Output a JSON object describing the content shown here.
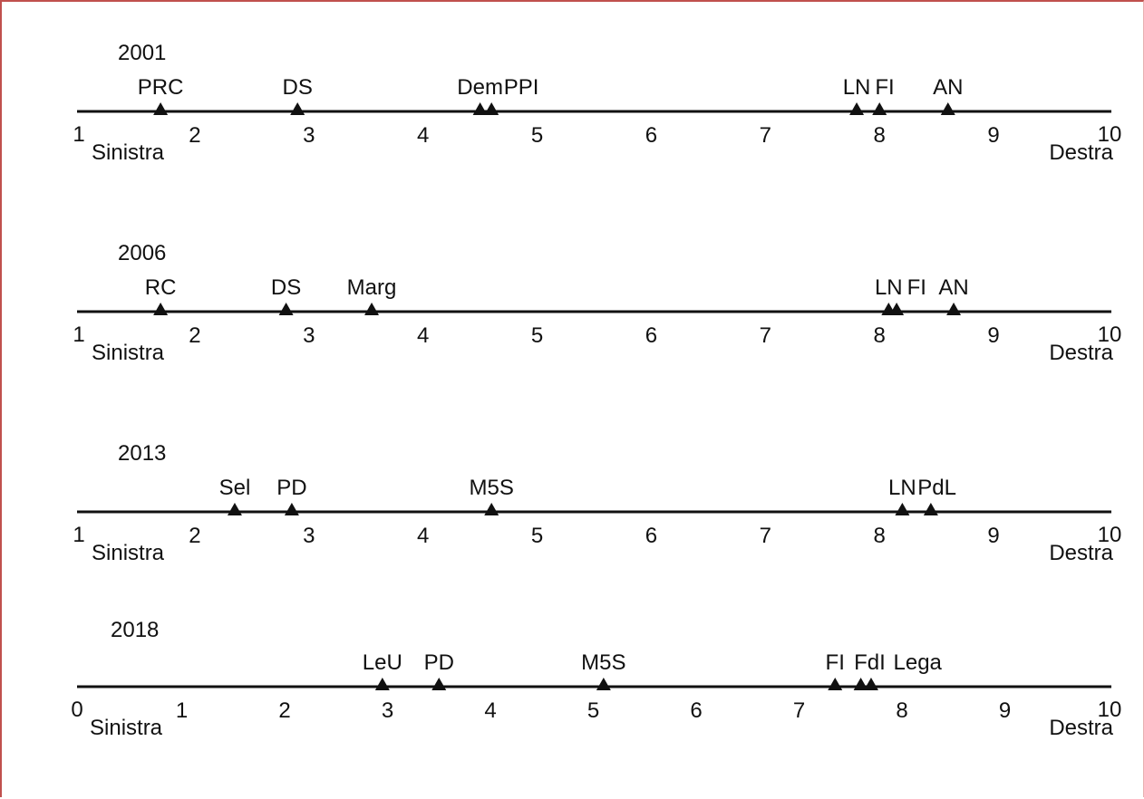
{
  "chart_data": [
    {
      "type": "scatter",
      "title": "2001",
      "xlim": [
        1,
        10
      ],
      "ticks": [
        "1",
        "2",
        "3",
        "4",
        "5",
        "6",
        "7",
        "8",
        "9",
        "10"
      ],
      "left_label": "Sinistra",
      "right_label": "Destra",
      "parties": [
        {
          "name": "PRC",
          "value": 1.7
        },
        {
          "name": "DS",
          "value": 2.9
        },
        {
          "name": "Dem",
          "value": 4.5
        },
        {
          "name": "PPI",
          "value": 4.6
        },
        {
          "name": "LN",
          "value": 7.8
        },
        {
          "name": "FI",
          "value": 8.0
        },
        {
          "name": "AN",
          "value": 8.6
        }
      ]
    },
    {
      "type": "scatter",
      "title": "2006",
      "xlim": [
        1,
        10
      ],
      "ticks": [
        "1",
        "2",
        "3",
        "4",
        "5",
        "6",
        "7",
        "8",
        "9",
        "10"
      ],
      "left_label": "Sinistra",
      "right_label": "Destra",
      "parties": [
        {
          "name": "RC",
          "value": 1.7
        },
        {
          "name": "DS",
          "value": 2.8
        },
        {
          "name": "Marg",
          "value": 3.55
        },
        {
          "name": "LN",
          "value": 8.08
        },
        {
          "name": "FI",
          "value": 8.15
        },
        {
          "name": "AN",
          "value": 8.65
        }
      ]
    },
    {
      "type": "scatter",
      "title": "2013",
      "xlim": [
        1,
        10
      ],
      "ticks": [
        "1",
        "2",
        "3",
        "4",
        "5",
        "6",
        "7",
        "8",
        "9",
        "10"
      ],
      "left_label": "Sinistra",
      "right_label": "Destra",
      "parties": [
        {
          "name": "Sel",
          "value": 2.35
        },
        {
          "name": "PD",
          "value": 2.85
        },
        {
          "name": "M5S",
          "value": 4.6
        },
        {
          "name": "LN",
          "value": 8.2
        },
        {
          "name": "PdL",
          "value": 8.45
        }
      ]
    },
    {
      "type": "scatter",
      "title": "2018",
      "xlim": [
        0,
        10
      ],
      "ticks": [
        "0",
        "1",
        "2",
        "3",
        "4",
        "5",
        "6",
        "7",
        "8",
        "9",
        "10"
      ],
      "left_label": "Sinistra",
      "right_label": "Destra",
      "parties": [
        {
          "name": "LeU",
          "value": 2.95
        },
        {
          "name": "PD",
          "value": 3.5
        },
        {
          "name": "M5S",
          "value": 5.1
        },
        {
          "name": "FI",
          "value": 7.35
        },
        {
          "name": "FdI",
          "value": 7.6
        },
        {
          "name": "Lega",
          "value": 7.7
        }
      ]
    }
  ]
}
